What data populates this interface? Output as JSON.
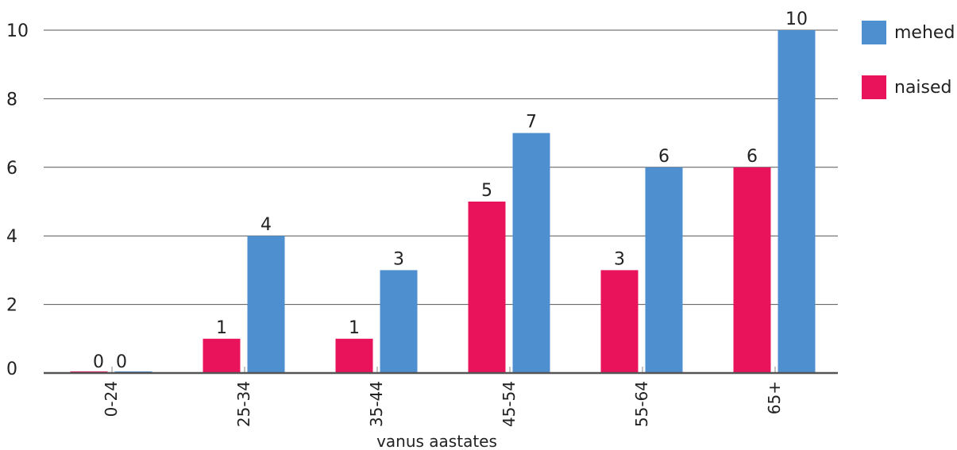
{
  "chart_data": {
    "type": "bar",
    "categories": [
      "0-24",
      "25-34",
      "35-44",
      "45-54",
      "55-64",
      "65+"
    ],
    "series": [
      {
        "name": "naised",
        "color": "#e8135a",
        "values": [
          0,
          1,
          1,
          5,
          3,
          6
        ]
      },
      {
        "name": "mehed",
        "color": "#4e8fcf",
        "values": [
          0,
          4,
          3,
          7,
          6,
          10
        ]
      }
    ],
    "xlabel": "vanus aastates",
    "ylabel": "",
    "ylim": [
      0,
      10
    ],
    "yticks": [
      0,
      2,
      4,
      6,
      8,
      10
    ],
    "grid": true,
    "legend_position": "top-right",
    "legend": [
      {
        "label": "mehed",
        "color": "#4e8fcf"
      },
      {
        "label": "naised",
        "color": "#e8135a"
      }
    ]
  }
}
